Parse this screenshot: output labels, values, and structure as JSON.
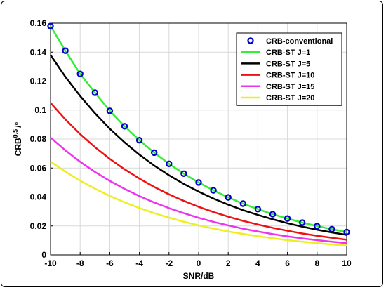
{
  "chart_data": {
    "type": "line",
    "xlabel": "SNR/dB",
    "ylabel": "CRB",
    "ylabel_superscript": "0.5",
    "ylabel_unit": "/°",
    "xlim": [
      -10,
      10
    ],
    "ylim": [
      0,
      0.16
    ],
    "grid": true,
    "legend_position": "top-right",
    "x_ticks": [
      "-10",
      "-8",
      "-6",
      "-4",
      "-2",
      "0",
      "2",
      "4",
      "6",
      "8",
      "10"
    ],
    "y_ticks": [
      "0",
      "0.02",
      "0.04",
      "0.06",
      "0.08",
      "0.1",
      "0.12",
      "0.14",
      "0.16"
    ],
    "x": [
      -10,
      -9,
      -8,
      -7,
      -6,
      -5,
      -4,
      -3,
      -2,
      -1,
      0,
      1,
      2,
      3,
      4,
      5,
      6,
      7,
      8,
      9,
      10
    ],
    "series": [
      {
        "name": "CRB-conventional",
        "style": "marker",
        "color": "#0000CC",
        "values": [
          0.158,
          0.141,
          0.125,
          0.112,
          0.0995,
          0.0888,
          0.0792,
          0.0706,
          0.0629,
          0.0561,
          0.05,
          0.0446,
          0.0397,
          0.0354,
          0.0316,
          0.0281,
          0.0251,
          0.0223,
          0.0199,
          0.0178,
          0.0158
        ]
      },
      {
        "name": "CRB-ST J=1",
        "style": "line",
        "color": "#33EE33",
        "values": [
          0.158,
          0.141,
          0.125,
          0.112,
          0.0995,
          0.0888,
          0.0792,
          0.0706,
          0.0629,
          0.0561,
          0.05,
          0.0446,
          0.0397,
          0.0354,
          0.0316,
          0.0281,
          0.0251,
          0.0223,
          0.0199,
          0.0178,
          0.0158
        ]
      },
      {
        "name": "CRB-ST J=5",
        "style": "line",
        "color": "#000000",
        "values": [
          0.138,
          0.123,
          0.1097,
          0.0978,
          0.0871,
          0.0777,
          0.0692,
          0.0617,
          0.055,
          0.049,
          0.0437,
          0.0389,
          0.0347,
          0.0309,
          0.0276,
          0.0246,
          0.0219,
          0.0195,
          0.0174,
          0.0155,
          0.0138
        ]
      },
      {
        "name": "CRB-ST J=10",
        "style": "line",
        "color": "#EE1111",
        "values": [
          0.105,
          0.0936,
          0.0834,
          0.0744,
          0.0663,
          0.0591,
          0.0527,
          0.0469,
          0.0418,
          0.0373,
          0.0332,
          0.0296,
          0.0264,
          0.0235,
          0.021,
          0.0187,
          0.0167,
          0.0148,
          0.0132,
          0.0118,
          0.0105
        ]
      },
      {
        "name": "CRB-ST J=15",
        "style": "line",
        "color": "#EE33EE",
        "values": [
          0.081,
          0.0722,
          0.0643,
          0.0573,
          0.0511,
          0.0456,
          0.0406,
          0.0362,
          0.0323,
          0.0288,
          0.0256,
          0.0228,
          0.0204,
          0.0181,
          0.0162,
          0.0144,
          0.0128,
          0.0114,
          0.0102,
          0.0091,
          0.0081
        ]
      },
      {
        "name": "CRB-ST J=20",
        "style": "line",
        "color": "#EEEE22",
        "values": [
          0.0645,
          0.0575,
          0.0512,
          0.0457,
          0.0407,
          0.0363,
          0.0324,
          0.0288,
          0.0257,
          0.0229,
          0.0204,
          0.0182,
          0.0162,
          0.0145,
          0.0129,
          0.0115,
          0.0102,
          0.0091,
          0.0081,
          0.0072,
          0.0065
        ]
      }
    ]
  }
}
